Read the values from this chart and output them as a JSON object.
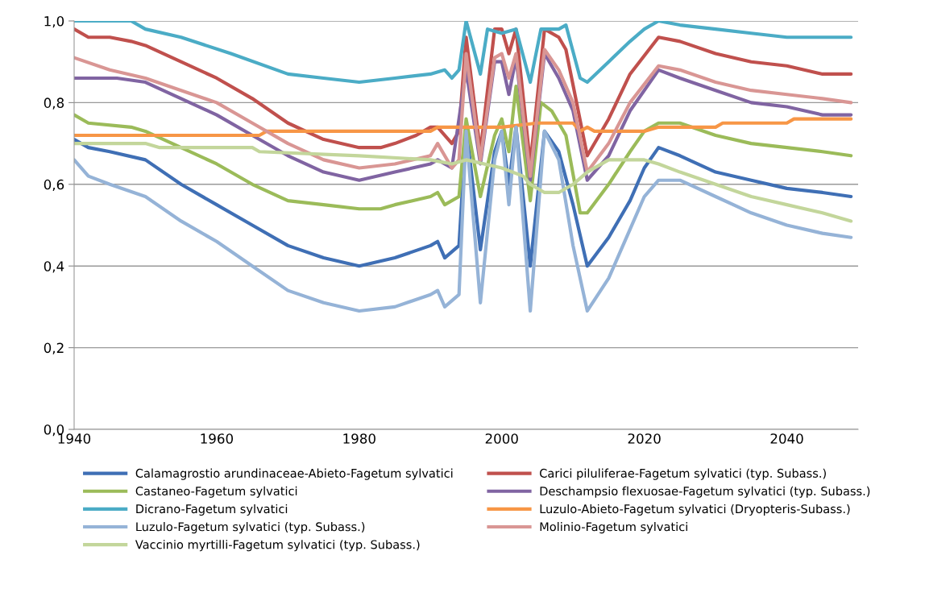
{
  "chart_data": {
    "type": "line",
    "xlim": [
      1940,
      2050
    ],
    "xticks": [
      1940,
      1960,
      1980,
      2000,
      2020,
      2040
    ],
    "ylim": [
      0,
      1
    ],
    "yticks": [
      {
        "value": 0,
        "label": "0,0"
      },
      {
        "value": 0.2,
        "label": "0,2"
      },
      {
        "value": 0.4,
        "label": "0,4"
      },
      {
        "value": 0.6,
        "label": "0,6"
      },
      {
        "value": 0.8,
        "label": "0,8"
      },
      {
        "value": 1,
        "label": "1,0"
      }
    ],
    "grid": "y",
    "legend": "bottom",
    "marker": "none",
    "line_style": "solid",
    "series": [
      {
        "name": "Calamagrostio arundinaceae-Abieto-Fagetum sylvatici",
        "color": "#3f6fb5",
        "x": [
          1940,
          1942,
          1945,
          1950,
          1955,
          1960,
          1965,
          1970,
          1975,
          1980,
          1985,
          1990,
          1991,
          1992,
          1994,
          1995,
          1997,
          1999,
          2000,
          2001,
          2002,
          2004,
          2006,
          2008,
          2010,
          2012,
          2015,
          2018,
          2020,
          2022,
          2025,
          2030,
          2035,
          2040,
          2045,
          2049
        ],
        "values": [
          0.71,
          0.69,
          0.68,
          0.66,
          0.6,
          0.55,
          0.5,
          0.45,
          0.42,
          0.4,
          0.42,
          0.45,
          0.46,
          0.42,
          0.45,
          0.74,
          0.44,
          0.68,
          0.73,
          0.6,
          0.74,
          0.4,
          0.73,
          0.68,
          0.55,
          0.4,
          0.47,
          0.56,
          0.64,
          0.69,
          0.67,
          0.63,
          0.61,
          0.59,
          0.58,
          0.57
        ]
      },
      {
        "name": "Carici piluliferae-Fagetum sylvatici (typ. Subass.)",
        "color": "#c0504d",
        "x": [
          1940,
          1942,
          1945,
          1948,
          1950,
          1955,
          1960,
          1965,
          1970,
          1975,
          1980,
          1983,
          1985,
          1988,
          1990,
          1991,
          1993,
          1994,
          1995,
          1997,
          1999,
          2000,
          2001,
          2002,
          2004,
          2006,
          2008,
          2009,
          2012,
          2015,
          2018,
          2022,
          2025,
          2030,
          2035,
          2040,
          2045,
          2049
        ],
        "values": [
          0.98,
          0.96,
          0.96,
          0.95,
          0.94,
          0.9,
          0.86,
          0.81,
          0.75,
          0.71,
          0.69,
          0.69,
          0.7,
          0.72,
          0.74,
          0.74,
          0.7,
          0.73,
          0.96,
          0.68,
          0.98,
          0.98,
          0.92,
          0.98,
          0.65,
          0.98,
          0.96,
          0.93,
          0.67,
          0.76,
          0.87,
          0.96,
          0.95,
          0.92,
          0.9,
          0.89,
          0.87,
          0.87
        ]
      },
      {
        "name": "Castaneo-Fagetum sylvatici",
        "color": "#9bbb59",
        "x": [
          1940,
          1942,
          1948,
          1950,
          1955,
          1960,
          1965,
          1970,
          1975,
          1980,
          1983,
          1985,
          1990,
          1991,
          1992,
          1994,
          1995,
          1997,
          1999,
          2000,
          2001,
          2002,
          2004,
          2005.5,
          2007,
          2009,
          2011,
          2012,
          2015,
          2018,
          2020,
          2022,
          2025,
          2030,
          2035,
          2040,
          2045,
          2049
        ],
        "values": [
          0.77,
          0.75,
          0.74,
          0.73,
          0.69,
          0.65,
          0.6,
          0.56,
          0.55,
          0.54,
          0.54,
          0.55,
          0.57,
          0.58,
          0.55,
          0.57,
          0.76,
          0.57,
          0.72,
          0.76,
          0.68,
          0.84,
          0.56,
          0.8,
          0.78,
          0.72,
          0.53,
          0.53,
          0.6,
          0.68,
          0.73,
          0.75,
          0.75,
          0.72,
          0.7,
          0.69,
          0.68,
          0.67
        ]
      },
      {
        "name": "Deschampsio flexuosae-Fagetum sylvatici (typ. Subass.)",
        "color": "#8064a2",
        "x": [
          1940,
          1946,
          1950,
          1955,
          1960,
          1965,
          1970,
          1975,
          1980,
          1985,
          1990,
          1991,
          1993,
          1995,
          1997,
          1999,
          2000,
          2001,
          2002,
          2004,
          2006,
          2008,
          2010,
          2012,
          2015,
          2018,
          2022,
          2025,
          2030,
          2035,
          2040,
          2045,
          2049
        ],
        "values": [
          0.86,
          0.86,
          0.85,
          0.81,
          0.77,
          0.72,
          0.67,
          0.63,
          0.61,
          0.63,
          0.65,
          0.66,
          0.64,
          0.88,
          0.65,
          0.9,
          0.9,
          0.82,
          0.91,
          0.61,
          0.92,
          0.86,
          0.78,
          0.61,
          0.67,
          0.78,
          0.88,
          0.86,
          0.83,
          0.8,
          0.79,
          0.77,
          0.77
        ]
      },
      {
        "name": "Dicrano-Fagetum sylvatici",
        "color": "#4bacc6",
        "x": [
          1940,
          1948,
          1950,
          1955,
          1962,
          1970,
          1975,
          1980,
          1985,
          1990,
          1992,
          1993,
          1994,
          1995,
          1997,
          1998,
          2000,
          2002,
          2004,
          2005.5,
          2008,
          2009,
          2011,
          2012,
          2015,
          2018,
          2020,
          2022,
          2025,
          2030,
          2035,
          2040,
          2049
        ],
        "values": [
          1.0,
          1.0,
          0.98,
          0.96,
          0.92,
          0.87,
          0.86,
          0.85,
          0.86,
          0.87,
          0.88,
          0.86,
          0.88,
          1.0,
          0.87,
          0.98,
          0.97,
          0.98,
          0.85,
          0.98,
          0.98,
          0.99,
          0.86,
          0.85,
          0.9,
          0.95,
          0.98,
          1.0,
          0.99,
          0.98,
          0.97,
          0.96,
          0.96
        ]
      },
      {
        "name": "Luzulo-Abieto-Fagetum sylvatici (Dryopteris-Subass.)",
        "color": "#f79646",
        "x": [
          1940,
          1966,
          1967,
          1990,
          1991,
          2000,
          2005,
          2010,
          2011,
          2012,
          2013,
          2020,
          2022,
          2030,
          2031,
          2040,
          2041,
          2049
        ],
        "values": [
          0.72,
          0.72,
          0.73,
          0.73,
          0.74,
          0.74,
          0.75,
          0.75,
          0.73,
          0.74,
          0.73,
          0.73,
          0.74,
          0.74,
          0.75,
          0.75,
          0.76,
          0.76
        ]
      },
      {
        "name": "Luzulo-Fagetum sylvatici (typ. Subass.)",
        "color": "#95b3d7",
        "x": [
          1940,
          1942,
          1945,
          1950,
          1955,
          1960,
          1965,
          1970,
          1975,
          1980,
          1985,
          1990,
          1991,
          1992,
          1994,
          1995,
          1997,
          1999,
          2000,
          2001,
          2002,
          2004,
          2006,
          2008,
          2010,
          2012,
          2015,
          2018,
          2020,
          2022,
          2025,
          2030,
          2035,
          2040,
          2045,
          2049
        ],
        "values": [
          0.66,
          0.62,
          0.6,
          0.57,
          0.51,
          0.46,
          0.4,
          0.34,
          0.31,
          0.29,
          0.3,
          0.33,
          0.34,
          0.3,
          0.33,
          0.73,
          0.31,
          0.66,
          0.73,
          0.55,
          0.74,
          0.29,
          0.73,
          0.66,
          0.45,
          0.29,
          0.37,
          0.49,
          0.57,
          0.61,
          0.61,
          0.57,
          0.53,
          0.5,
          0.48,
          0.47
        ]
      },
      {
        "name": "Molinio-Fagetum sylvatici",
        "color": "#d99694",
        "x": [
          1940,
          1945,
          1950,
          1955,
          1960,
          1965,
          1970,
          1975,
          1980,
          1985,
          1990,
          1991,
          1993,
          1994,
          1995,
          1997,
          1999,
          2000,
          2001,
          2002,
          2004,
          2006,
          2008,
          2010,
          2012,
          2015,
          2018,
          2022,
          2025,
          2030,
          2035,
          2040,
          2045,
          2049
        ],
        "values": [
          0.91,
          0.88,
          0.86,
          0.83,
          0.8,
          0.75,
          0.7,
          0.66,
          0.64,
          0.65,
          0.67,
          0.7,
          0.64,
          0.66,
          0.92,
          0.66,
          0.91,
          0.92,
          0.86,
          0.92,
          0.62,
          0.93,
          0.88,
          0.8,
          0.63,
          0.7,
          0.8,
          0.89,
          0.88,
          0.85,
          0.83,
          0.82,
          0.81,
          0.8
        ]
      },
      {
        "name": "Vaccinio myrtilli-Fagetum sylvatici (typ. Subass.)",
        "color": "#c3d69b",
        "x": [
          1940,
          1950,
          1952,
          1965,
          1966,
          1980,
          1990,
          1993,
          1995,
          2000,
          2003,
          2004,
          2006,
          2008,
          2010,
          2012,
          2015,
          2018,
          2020,
          2022,
          2025,
          2030,
          2035,
          2040,
          2045,
          2049
        ],
        "values": [
          0.7,
          0.7,
          0.69,
          0.69,
          0.68,
          0.67,
          0.66,
          0.65,
          0.66,
          0.64,
          0.62,
          0.6,
          0.58,
          0.58,
          0.6,
          0.63,
          0.66,
          0.66,
          0.66,
          0.65,
          0.63,
          0.6,
          0.57,
          0.55,
          0.53,
          0.51
        ]
      }
    ]
  }
}
